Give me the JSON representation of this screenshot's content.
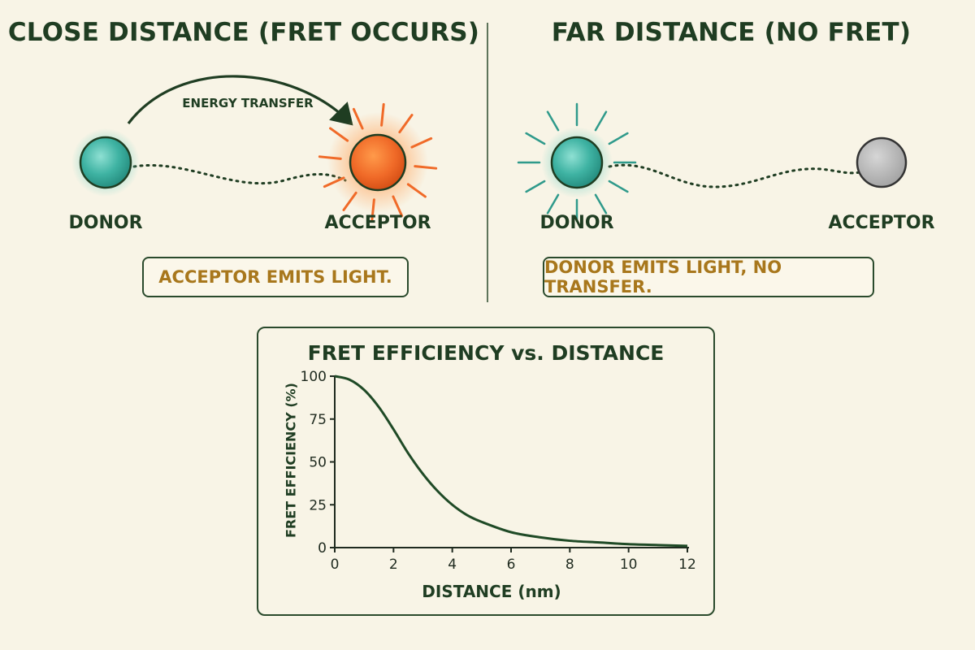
{
  "left_panel": {
    "title": "CLOSE DISTANCE (FRET OCCURS)",
    "transfer_label": "ENERGY TRANSFER",
    "donor_label": "DONOR",
    "acceptor_label": "ACCEPTOR",
    "note": "ACCEPTOR EMITS LIGHT."
  },
  "right_panel": {
    "title": "FAR DISTANCE (NO FRET)",
    "donor_label": "DONOR",
    "acceptor_label": "ACCEPTOR",
    "note": "DONOR EMITS LIGHT, NO TRANSFER."
  },
  "colors": {
    "background": "#f8f4e6",
    "dark_green": "#1f3d22",
    "donor_teal": "#3fb3a3",
    "acceptor_orange": "#f06a28",
    "acceptor_gray": "#b4b4b4",
    "note_text": "#a8771c"
  },
  "chart_data": {
    "type": "line",
    "title": "FRET EFFICIENCY vs. DISTANCE",
    "xlabel": "DISTANCE (nm)",
    "ylabel": "FRET EFFICIENCY (%)",
    "xlim": [
      0,
      12
    ],
    "ylim": [
      0,
      100
    ],
    "x_ticks": [
      0,
      2,
      4,
      6,
      8,
      10,
      12
    ],
    "y_ticks": [
      0,
      25,
      50,
      75,
      100
    ],
    "series": [
      {
        "x": [
          0,
          0.5,
          1,
          1.5,
          2,
          2.5,
          3,
          3.5,
          4,
          4.5,
          5,
          6,
          7,
          8,
          9,
          10,
          11,
          12
        ],
        "values": [
          100,
          98,
          92,
          82,
          69,
          55,
          43,
          33,
          25,
          19,
          15,
          9,
          6,
          4,
          3,
          2,
          1.5,
          1
        ]
      }
    ],
    "grid": false
  }
}
